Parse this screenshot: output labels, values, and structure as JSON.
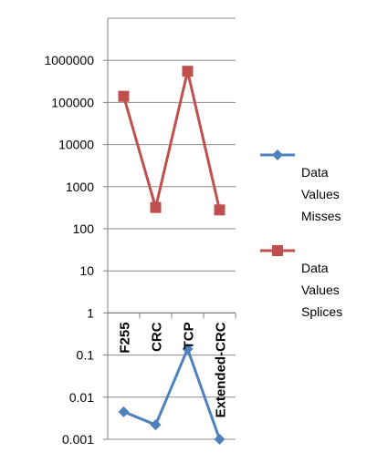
{
  "chart_data": {
    "type": "line",
    "y_scale": "log",
    "ylim": [
      0.001,
      10000000
    ],
    "y_ticks": [
      {
        "value": 0.001,
        "label": "0.001"
      },
      {
        "value": 0.01,
        "label": "0.01"
      },
      {
        "value": 0.1,
        "label": "0.1"
      },
      {
        "value": 1,
        "label": "1"
      },
      {
        "value": 10,
        "label": "10"
      },
      {
        "value": 100,
        "label": "100"
      },
      {
        "value": 1000,
        "label": "1000"
      },
      {
        "value": 10000,
        "label": "10000"
      },
      {
        "value": 100000,
        "label": "100000"
      },
      {
        "value": 1000000,
        "label": "1000000"
      }
    ],
    "categories": [
      "F255",
      "CRC",
      "TCP",
      "Extended-CRC"
    ],
    "grid": true,
    "legend_position": "right",
    "series": [
      {
        "name": "Data Values Misses",
        "legend_lines": [
          "Data",
          "Values",
          "Misses"
        ],
        "color": "#4F81BD",
        "marker": "diamond",
        "values": [
          0.0045,
          0.0022,
          0.14,
          0.001
        ]
      },
      {
        "name": "Data Values Splices",
        "legend_lines": [
          "Data",
          "Values",
          "Splices"
        ],
        "color": "#C0504D",
        "marker": "square",
        "values": [
          140000,
          320,
          550000,
          280
        ]
      }
    ]
  }
}
